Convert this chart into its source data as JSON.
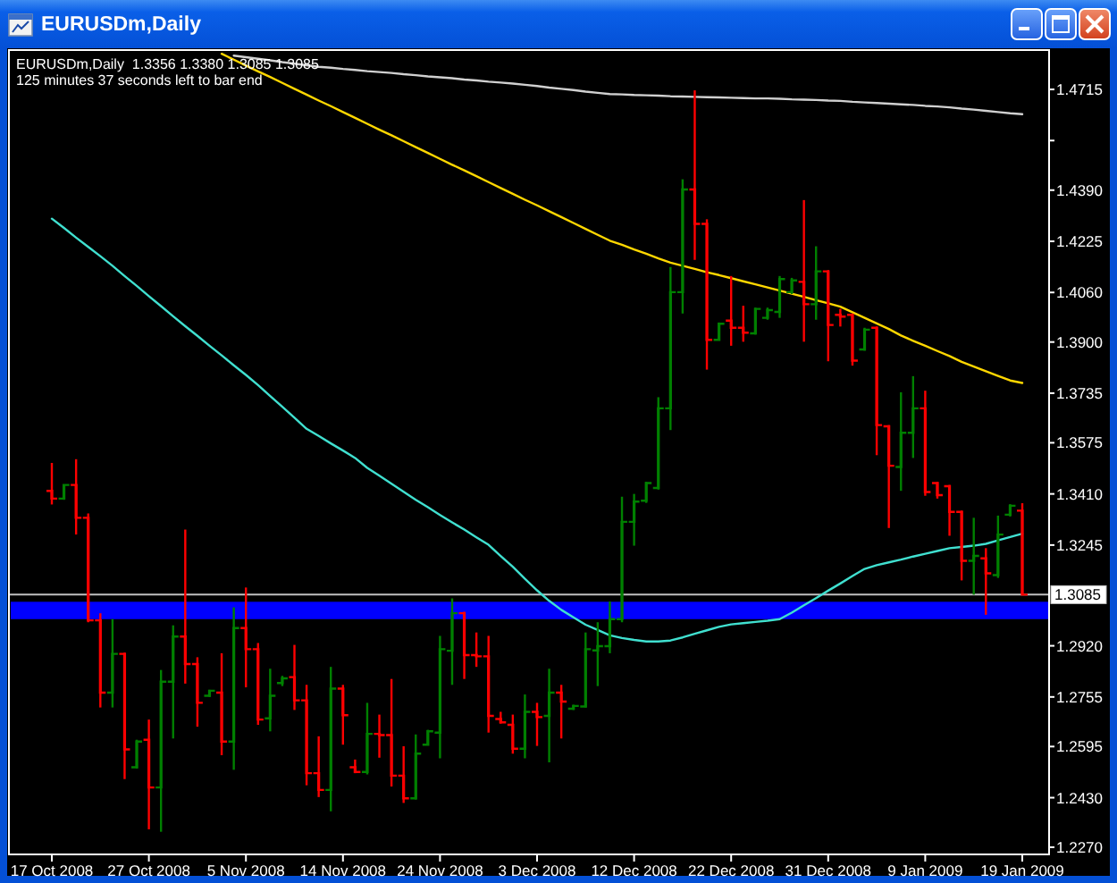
{
  "chart_data": {
    "type": "candlestick",
    "title": "EURUSDm,Daily",
    "annotations": [
      "EURUSDm,Daily  1.3356 1.3380 1.3085 1.3085",
      "125 minutes 37 seconds left to bar end"
    ],
    "categories": [
      "17 Oct 2008",
      null,
      null,
      null,
      null,
      null,
      null,
      null,
      "27 Oct 2008",
      null,
      null,
      null,
      null,
      null,
      null,
      null,
      "5 Nov 2008",
      null,
      null,
      null,
      null,
      null,
      null,
      null,
      "14 Nov 2008",
      null,
      null,
      null,
      null,
      null,
      null,
      null,
      "24 Nov 2008",
      null,
      null,
      null,
      null,
      null,
      null,
      null,
      "3 Dec 2008",
      null,
      null,
      null,
      null,
      null,
      null,
      null,
      "12 Dec 2008",
      null,
      null,
      null,
      null,
      null,
      null,
      null,
      "22 Dec 2008",
      null,
      null,
      null,
      null,
      null,
      null,
      null,
      "31 Dec 2008",
      null,
      null,
      null,
      null,
      null,
      null,
      null,
      "9 Jan 2009",
      null,
      null,
      null,
      null,
      null,
      null,
      null,
      "19 Jan 2009"
    ],
    "ohlc": [
      [
        1.342,
        1.351,
        1.3376,
        1.3395
      ],
      [
        1.3395,
        1.344,
        1.3391,
        1.3439
      ],
      [
        1.3439,
        1.3522,
        1.3279,
        1.3333
      ],
      [
        1.3333,
        1.3347,
        1.2996,
        1.3002
      ],
      [
        1.3002,
        1.3025,
        1.2721,
        1.2769
      ],
      [
        1.2769,
        1.3006,
        1.2721,
        1.2894
      ],
      [
        1.2894,
        1.2898,
        1.249,
        1.2586
      ],
      [
        1.2528,
        1.2617,
        1.2524,
        1.2611
      ],
      [
        1.2617,
        1.2682,
        1.2328,
        1.2463
      ],
      [
        1.2463,
        1.2842,
        1.232,
        1.2804
      ],
      [
        1.2804,
        1.2986,
        1.2621,
        1.295
      ],
      [
        1.295,
        1.3295,
        1.2798,
        1.2861
      ],
      [
        1.2861,
        1.2883,
        1.2659,
        1.2736
      ],
      [
        1.2759,
        1.2778,
        1.2755,
        1.2775
      ],
      [
        1.2769,
        1.2896,
        1.2567,
        1.2611
      ],
      [
        1.2611,
        1.3044,
        1.252,
        1.2977
      ],
      [
        1.2977,
        1.3108,
        1.2786,
        1.2909
      ],
      [
        1.2909,
        1.2929,
        1.2665,
        1.2682
      ],
      [
        1.2686,
        1.2846,
        1.2644,
        1.2759
      ],
      [
        1.28,
        1.2823,
        1.279,
        1.2815
      ],
      [
        1.2819,
        1.2923,
        1.2713,
        1.2744
      ],
      [
        1.2744,
        1.2794,
        1.247,
        1.2509
      ],
      [
        1.2509,
        1.2628,
        1.2432,
        1.2455
      ],
      [
        1.2455,
        1.2852,
        1.2386,
        1.2782
      ],
      [
        1.2782,
        1.2794,
        1.2601,
        1.2696
      ],
      [
        1.2528,
        1.2553,
        1.2509,
        1.2513
      ],
      [
        1.2513,
        1.2736,
        1.2505,
        1.2636
      ],
      [
        1.2636,
        1.2698,
        1.2559,
        1.2632
      ],
      [
        1.2632,
        1.2813,
        1.2466,
        1.2501
      ],
      [
        1.2501,
        1.2596,
        1.2413,
        1.2428
      ],
      [
        1.2428,
        1.2634,
        1.2424,
        1.2572
      ],
      [
        1.2601,
        1.2649,
        1.2601,
        1.2644
      ],
      [
        1.264,
        1.2952,
        1.2557,
        1.2909
      ],
      [
        1.2904,
        1.3073,
        1.2794,
        1.3025
      ],
      [
        1.3025,
        1.303,
        1.2813,
        1.289
      ],
      [
        1.289,
        1.2963,
        1.2852,
        1.2886
      ],
      [
        1.2886,
        1.2952,
        1.264,
        1.2694
      ],
      [
        1.2684,
        1.2707,
        1.2669,
        1.2673
      ],
      [
        1.2665,
        1.2698,
        1.2572,
        1.2588
      ],
      [
        1.2588,
        1.2763,
        1.2557,
        1.2707
      ],
      [
        1.2707,
        1.2736,
        1.2597,
        1.269
      ],
      [
        1.2694,
        1.2846,
        1.2544,
        1.2769
      ],
      [
        1.2769,
        1.2794,
        1.2621,
        1.274
      ],
      [
        1.2717,
        1.273,
        1.2713,
        1.2726
      ],
      [
        1.2724,
        1.2963,
        1.2721,
        1.2909
      ],
      [
        1.2905,
        1.2996,
        1.279,
        1.2919
      ],
      [
        1.2919,
        1.3063,
        1.2896,
        1.3006
      ],
      [
        1.3006,
        1.3401,
        1.2996,
        1.332
      ],
      [
        1.332,
        1.341,
        1.3243,
        1.3385
      ],
      [
        1.3388,
        1.3449,
        1.3381,
        1.3445
      ],
      [
        1.3429,
        1.3722,
        1.3424,
        1.3686
      ],
      [
        1.3686,
        1.4142,
        1.3616,
        1.4061
      ],
      [
        1.4061,
        1.4425,
        1.3992,
        1.4392
      ],
      [
        1.4392,
        1.4712,
        1.4165,
        1.4281
      ],
      [
        1.4281,
        1.4296,
        1.3811,
        1.3907
      ],
      [
        1.3907,
        1.3963,
        1.3905,
        1.3959
      ],
      [
        1.3969,
        1.4113,
        1.3888,
        1.3946
      ],
      [
        1.3946,
        1.4017,
        1.3901,
        1.393
      ],
      [
        1.3928,
        1.4011,
        1.3924,
        1.4007
      ],
      [
        1.3978,
        1.4011,
        1.3972,
        1.4003
      ],
      [
        1.3997,
        1.4113,
        1.3978,
        1.4103
      ],
      [
        1.4061,
        1.4107,
        1.4055,
        1.4099
      ],
      [
        1.4094,
        1.4358,
        1.3901,
        1.4022
      ],
      [
        1.4022,
        1.4209,
        1.3972,
        1.4128
      ],
      [
        1.4128,
        1.4132,
        1.3838,
        1.3955
      ],
      [
        1.3988,
        1.4007,
        1.395,
        1.3982
      ],
      [
        1.3988,
        1.3992,
        1.3824,
        1.384
      ],
      [
        1.3876,
        1.3946,
        1.3872,
        1.394
      ],
      [
        1.3946,
        1.395,
        1.3535,
        1.3632
      ],
      [
        1.3628,
        1.3632,
        1.33,
        1.3501
      ],
      [
        1.3497,
        1.3738,
        1.342,
        1.3607
      ],
      [
        1.3607,
        1.379,
        1.3526,
        1.3686
      ],
      [
        1.3686,
        1.3743,
        1.3404,
        1.3416
      ],
      [
        1.3445,
        1.3449,
        1.3395,
        1.3406
      ],
      [
        1.3435,
        1.3439,
        1.3275,
        1.3352
      ],
      [
        1.3352,
        1.3356,
        1.3131,
        1.3194
      ],
      [
        1.3194,
        1.3333,
        1.3085,
        1.321
      ],
      [
        1.3202,
        1.3235,
        1.302,
        1.3154
      ],
      [
        1.3148,
        1.334,
        1.3139,
        1.3279
      ],
      [
        1.3343,
        1.3377,
        1.3337,
        1.3372
      ],
      [
        1.3356,
        1.338,
        1.3085,
        1.3085
      ]
    ],
    "colors": [
      "#ff0000",
      "#008000",
      "#ff0000",
      "#ff0000",
      "#ff0000",
      "#008000",
      "#ff0000",
      "#008000",
      "#ff0000",
      "#008000",
      "#008000",
      "#ff0000",
      "#ff0000",
      "#008000",
      "#ff0000",
      "#008000",
      "#ff0000",
      "#ff0000",
      "#008000",
      "#008000",
      "#ff0000",
      "#ff0000",
      "#ff0000",
      "#008000",
      "#ff0000",
      "#ff0000",
      "#008000",
      "#ff0000",
      "#ff0000",
      "#ff0000",
      "#008000",
      "#008000",
      "#008000",
      "#008000",
      "#ff0000",
      "#ff0000",
      "#ff0000",
      "#ff0000",
      "#ff0000",
      "#008000",
      "#ff0000",
      "#008000",
      "#ff0000",
      "#008000",
      "#008000",
      "#008000",
      "#008000",
      "#008000",
      "#008000",
      "#008000",
      "#008000",
      "#008000",
      "#008000",
      "#ff0000",
      "#ff0000",
      "#008000",
      "#ff0000",
      "#ff0000",
      "#008000",
      "#008000",
      "#008000",
      "#008000",
      "#ff0000",
      "#008000",
      "#ff0000",
      "#ff0000",
      "#ff0000",
      "#008000",
      "#ff0000",
      "#ff0000",
      "#008000",
      "#008000",
      "#ff0000",
      "#ff0000",
      "#ff0000",
      "#ff0000",
      "#008000",
      "#ff0000",
      "#008000",
      "#008000",
      "#ff0000"
    ],
    "series": [
      {
        "type": "line",
        "color": "#d0d0d0",
        "values": [
          null,
          null,
          null,
          null,
          null,
          null,
          null,
          null,
          null,
          null,
          null,
          null,
          null,
          null,
          null,
          1.4824,
          1.4819,
          1.4814,
          1.4809,
          1.4803,
          1.4798,
          1.4793,
          1.4788,
          1.4785,
          1.4781,
          1.4778,
          1.4774,
          1.4771,
          1.4768,
          1.4764,
          1.4761,
          1.4757,
          1.4754,
          1.4751,
          1.4747,
          1.4744,
          1.474,
          1.4737,
          1.4734,
          1.473,
          1.4726,
          1.4721,
          1.4717,
          1.4713,
          1.4708,
          1.4704,
          1.47,
          1.4699,
          1.4697,
          1.4696,
          1.4695,
          1.4693,
          1.4692,
          1.4691,
          1.469,
          1.4689,
          1.4688,
          1.4687,
          1.4686,
          1.4686,
          1.4685,
          1.4683,
          1.4682,
          1.4681,
          1.4679,
          1.4678,
          1.4675,
          1.4673,
          1.4671,
          1.4669,
          1.4667,
          1.4665,
          1.4662,
          1.466,
          1.4657,
          1.4653,
          1.465,
          1.4646,
          1.4642,
          1.4638,
          1.4635
        ]
      },
      {
        "type": "line",
        "color": "#ffd700",
        "values": [
          null,
          null,
          null,
          null,
          null,
          null,
          null,
          null,
          null,
          null,
          null,
          null,
          null,
          null,
          1.483,
          1.4811,
          1.4792,
          1.4773,
          1.4755,
          1.4736,
          1.4717,
          1.4698,
          1.4679,
          1.4661,
          1.4642,
          1.4623,
          1.4604,
          1.4585,
          1.4567,
          1.4548,
          1.4529,
          1.451,
          1.4491,
          1.4472,
          1.4454,
          1.4435,
          1.4416,
          1.4397,
          1.4378,
          1.4359,
          1.4341,
          1.4322,
          1.4303,
          1.4284,
          1.4265,
          1.4246,
          1.4227,
          1.4214,
          1.4199,
          1.4185,
          1.417,
          1.4156,
          1.4146,
          1.4136,
          1.4125,
          1.4116,
          1.4106,
          1.4096,
          1.4086,
          1.4076,
          1.4066,
          1.4056,
          1.4046,
          1.4035,
          1.4025,
          1.4014,
          1.3996,
          1.3978,
          1.396,
          1.3942,
          1.3921,
          1.3904,
          1.3888,
          1.3871,
          1.3855,
          1.3836,
          1.3821,
          1.3806,
          1.3791,
          1.3776,
          1.3768
        ]
      },
      {
        "type": "line",
        "color": "#40e0d0",
        "values": [
          1.4298,
          1.4268,
          1.4237,
          1.4207,
          1.4177,
          1.4146,
          1.4113,
          1.4081,
          1.4048,
          1.4016,
          1.3983,
          1.3951,
          1.392,
          1.3888,
          1.3857,
          1.3825,
          1.3794,
          1.3761,
          1.3726,
          1.3691,
          1.3656,
          1.362,
          1.3597,
          1.3573,
          1.355,
          1.3526,
          1.3494,
          1.3469,
          1.3443,
          1.3417,
          1.3391,
          1.3367,
          1.3342,
          1.3318,
          1.3295,
          1.327,
          1.3246,
          1.321,
          1.3175,
          1.3136,
          1.3099,
          1.3065,
          1.3036,
          1.3012,
          1.2988,
          1.2971,
          1.2954,
          1.2945,
          1.2939,
          1.2934,
          1.2934,
          1.2937,
          1.2947,
          1.2959,
          1.297,
          1.2981,
          1.2989,
          1.2993,
          1.2997,
          1.3001,
          1.3006,
          1.3027,
          1.3051,
          1.3074,
          1.3098,
          1.3121,
          1.3145,
          1.3168,
          1.318,
          1.3189,
          1.3198,
          1.3208,
          1.3217,
          1.3226,
          1.3235,
          1.3239,
          1.3243,
          1.3249,
          1.326,
          1.3271,
          1.3282
        ]
      }
    ],
    "ylim": [
      1.2247,
      1.4842
    ],
    "yticks": [
      {
        "value": 1.4715,
        "label": "1.4715"
      },
      {
        "value": 1.455,
        "label": null
      },
      {
        "value": 1.439,
        "label": "1.4390"
      },
      {
        "value": 1.4225,
        "label": "1.4225"
      },
      {
        "value": 1.406,
        "label": "1.4060"
      },
      {
        "value": 1.39,
        "label": "1.3900"
      },
      {
        "value": 1.3735,
        "label": "1.3735"
      },
      {
        "value": 1.3575,
        "label": "1.3575"
      },
      {
        "value": 1.341,
        "label": "1.3410"
      },
      {
        "value": 1.3245,
        "label": "1.3245"
      },
      {
        "value": 1.292,
        "label": "1.2920"
      },
      {
        "value": 1.2755,
        "label": "1.2755"
      },
      {
        "value": 1.2595,
        "label": "1.2595"
      },
      {
        "value": 1.243,
        "label": "1.2430"
      },
      {
        "value": 1.227,
        "label": "1.2270"
      }
    ],
    "ref_lines": [
      {
        "axis": "y",
        "value": 1.3085,
        "label": "1.3085",
        "color": "#c0c0c0"
      }
    ],
    "bands": [
      {
        "axis": "y",
        "from": 1.3006,
        "to": 1.3062,
        "color": "#0000ff"
      }
    ]
  }
}
